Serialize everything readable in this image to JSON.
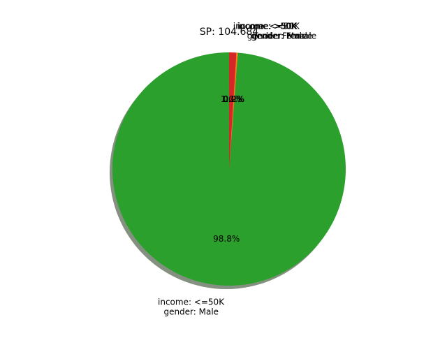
{
  "chart_data": {
    "type": "pie",
    "title": "SP: 104.684",
    "shadow": true,
    "start_angle_deg": 90,
    "direction": "counterclockwise",
    "slices": [
      {
        "label_line1": "income: <=50K",
        "label_line2": "gender: Male",
        "value": 98.8,
        "pct_text": "98.8%",
        "color": "#2ca02c"
      },
      {
        "label_line1": "income: >50K",
        "label_line2": "gender: Male",
        "value": 0.2,
        "pct_text": "0.2%",
        "color": "#ff7f0e"
      },
      {
        "label_line1": "income: >50K",
        "label_line2": "gender: Female",
        "value": 0.0,
        "pct_text": "0.0%",
        "color": "#1f77b4"
      },
      {
        "label_line1": "income: <=50K",
        "label_line2": "gender: Female",
        "value": 1.0,
        "pct_text": "1.0%",
        "color": "#d62728"
      }
    ]
  }
}
